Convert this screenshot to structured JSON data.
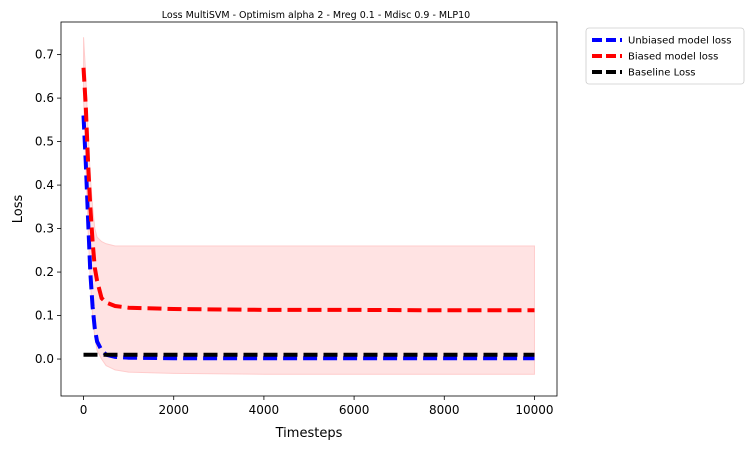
{
  "chart_data": {
    "type": "line",
    "title": "Loss MultiSVM - Optimism alpha 2 - Mreg 0.1 - Mdisc 0.9 - MLP10",
    "xlabel": "Timesteps",
    "ylabel": "Loss",
    "xlim": [
      -500,
      10500
    ],
    "ylim": [
      -0.085,
      0.775
    ],
    "xticks": [
      0,
      2000,
      4000,
      6000,
      8000,
      10000
    ],
    "yticks": [
      0.0,
      0.1,
      0.2,
      0.3,
      0.4,
      0.5,
      0.6,
      0.7
    ],
    "xtick_labels": [
      "0",
      "2000",
      "4000",
      "6000",
      "8000",
      "10000"
    ],
    "ytick_labels": [
      "0.0",
      "0.1",
      "0.2",
      "0.3",
      "0.4",
      "0.5",
      "0.6",
      "0.7"
    ],
    "grid": false,
    "legend_position": "outside top-right",
    "series": [
      {
        "name": "Unbiased model loss",
        "color": "#0000ff",
        "style": "dashed",
        "x": [
          0,
          50,
          100,
          150,
          200,
          250,
          300,
          400,
          500,
          700,
          1000,
          2000,
          4000,
          6000,
          8000,
          10000
        ],
        "y": [
          0.56,
          0.45,
          0.32,
          0.2,
          0.12,
          0.07,
          0.04,
          0.02,
          0.01,
          0.005,
          0.003,
          0.002,
          0.002,
          0.002,
          0.002,
          0.002
        ]
      },
      {
        "name": "Biased model loss",
        "color": "#ff0000",
        "style": "dashed",
        "x": [
          0,
          50,
          100,
          150,
          200,
          250,
          300,
          400,
          500,
          700,
          1000,
          2000,
          4000,
          6000,
          8000,
          10000
        ],
        "y": [
          0.67,
          0.58,
          0.45,
          0.35,
          0.27,
          0.21,
          0.18,
          0.14,
          0.13,
          0.122,
          0.118,
          0.115,
          0.113,
          0.113,
          0.112,
          0.112
        ]
      },
      {
        "name": "Baseline Loss",
        "color": "#000000",
        "style": "dashed",
        "x": [
          0,
          10000
        ],
        "y": [
          0.01,
          0.01
        ]
      }
    ],
    "band": {
      "color": "#ffcccc",
      "x": [
        0,
        50,
        100,
        150,
        200,
        250,
        300,
        400,
        500,
        700,
        1000,
        2000,
        4000,
        6000,
        8000,
        10000
      ],
      "upper": [
        0.74,
        0.65,
        0.52,
        0.42,
        0.35,
        0.3,
        0.28,
        0.27,
        0.265,
        0.26,
        0.26,
        0.26,
        0.26,
        0.26,
        0.26,
        0.26
      ],
      "lower": [
        0.6,
        0.45,
        0.3,
        0.18,
        0.1,
        0.05,
        0.02,
        0.0,
        -0.015,
        -0.025,
        -0.03,
        -0.033,
        -0.035,
        -0.035,
        -0.035,
        -0.035
      ]
    }
  }
}
